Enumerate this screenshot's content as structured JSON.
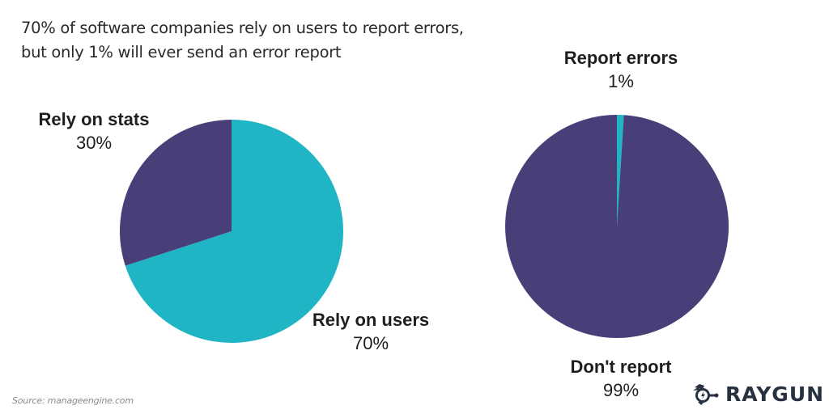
{
  "title": {
    "line1": "70% of software companies rely on users to report errors,",
    "line2": "but only 1% will ever send an error report"
  },
  "colors": {
    "teal": "#1fb5c4",
    "purple": "#483f78",
    "text": "#1e1e1e",
    "source": "#8a8a8a",
    "logo": "#283140"
  },
  "left_chart": {
    "labels": [
      {
        "name": "Rely on stats",
        "pct": "30%"
      },
      {
        "name": "Rely on users",
        "pct": "70%"
      }
    ]
  },
  "right_chart": {
    "labels": [
      {
        "name": "Report errors",
        "pct": "1%"
      },
      {
        "name": "Don't report",
        "pct": "99%"
      }
    ]
  },
  "source": "Source: manageengine.com",
  "logo": {
    "icon": "raygun-logo-icon",
    "text": "RAYGUN"
  },
  "chart_data": [
    {
      "type": "pie",
      "title": "70% of software companies rely on users to report errors",
      "categories": [
        "Rely on stats",
        "Rely on users"
      ],
      "values": [
        30,
        70
      ],
      "colors": [
        "#483f78",
        "#1fb5c4"
      ],
      "unit": "%"
    },
    {
      "type": "pie",
      "title": "but only 1% will ever send an error report",
      "categories": [
        "Report errors",
        "Don't report"
      ],
      "values": [
        1,
        99
      ],
      "colors": [
        "#1fb5c4",
        "#483f78"
      ],
      "unit": "%"
    }
  ]
}
